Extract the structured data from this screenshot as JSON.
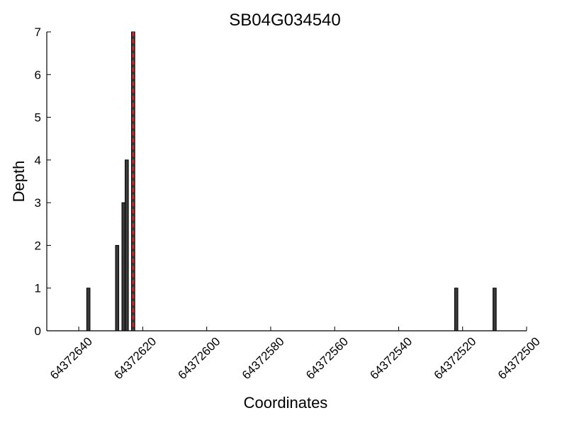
{
  "chart_data": {
    "type": "bar",
    "title": "SB04G034540",
    "xlabel": "Coordinates",
    "ylabel": "Depth",
    "x_axis_reversed": true,
    "xlim": [
      64372650,
      64372500
    ],
    "ylim": [
      0,
      7
    ],
    "grid": false,
    "legend": "none",
    "x_ticks": [
      64372640,
      64372620,
      64372600,
      64372580,
      64372560,
      64372540,
      64372520,
      64372500
    ],
    "y_ticks": [
      0,
      1,
      2,
      3,
      4,
      5,
      6,
      7
    ],
    "bar_color": "#3a3a3a",
    "bars": [
      {
        "x": 64372637,
        "value": 1
      },
      {
        "x": 64372628,
        "value": 2
      },
      {
        "x": 64372626,
        "value": 3
      },
      {
        "x": 64372625,
        "value": 4
      },
      {
        "x": 64372623,
        "value": 7
      },
      {
        "x": 64372522,
        "value": 1
      },
      {
        "x": 64372510,
        "value": 1
      }
    ],
    "marker_line": {
      "x": 64372623,
      "color": "#e0202a",
      "style": "dashed"
    }
  }
}
